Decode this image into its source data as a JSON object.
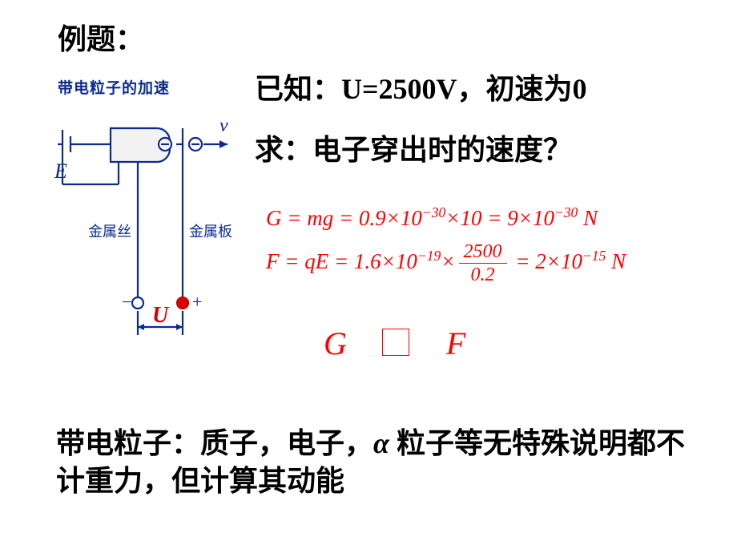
{
  "title": "例题：",
  "diagram": {
    "caption": "带电粒子的加速",
    "battery_label": "E",
    "wire_label": "金属丝",
    "plate_label": "金属板",
    "velocity_label": "v",
    "voltage_label": "U",
    "minus_sign": "−",
    "plus_sign": "+",
    "colors": {
      "stroke": "#0b2b8f",
      "text": "#0b2b8f",
      "U_text": "#d40000",
      "fill_bulb": "#f2f2f2",
      "pos_terminal": "#d40000"
    }
  },
  "given": "已知：U=2500V，初速为0",
  "ask": "求：电子穿出时的速度？",
  "equations": {
    "g_line": "G = mg = 0.9×10<sup>−30</sup>×10 = 9×10<sup>−30</sup> N",
    "f_prefix": "F = qE = 1.6×10<sup>−19</sup>×",
    "f_num": "2500",
    "f_den": "0.2",
    "f_suffix": " = 2×10<sup>−15</sup> N",
    "cmp_left": "G",
    "cmp_right": "F"
  },
  "conclusion_1": "带电粒子：质子，电子，",
  "conclusion_alpha": "α",
  "conclusion_2": " 粒子等无特殊说明都不计重力，但计算其动能"
}
